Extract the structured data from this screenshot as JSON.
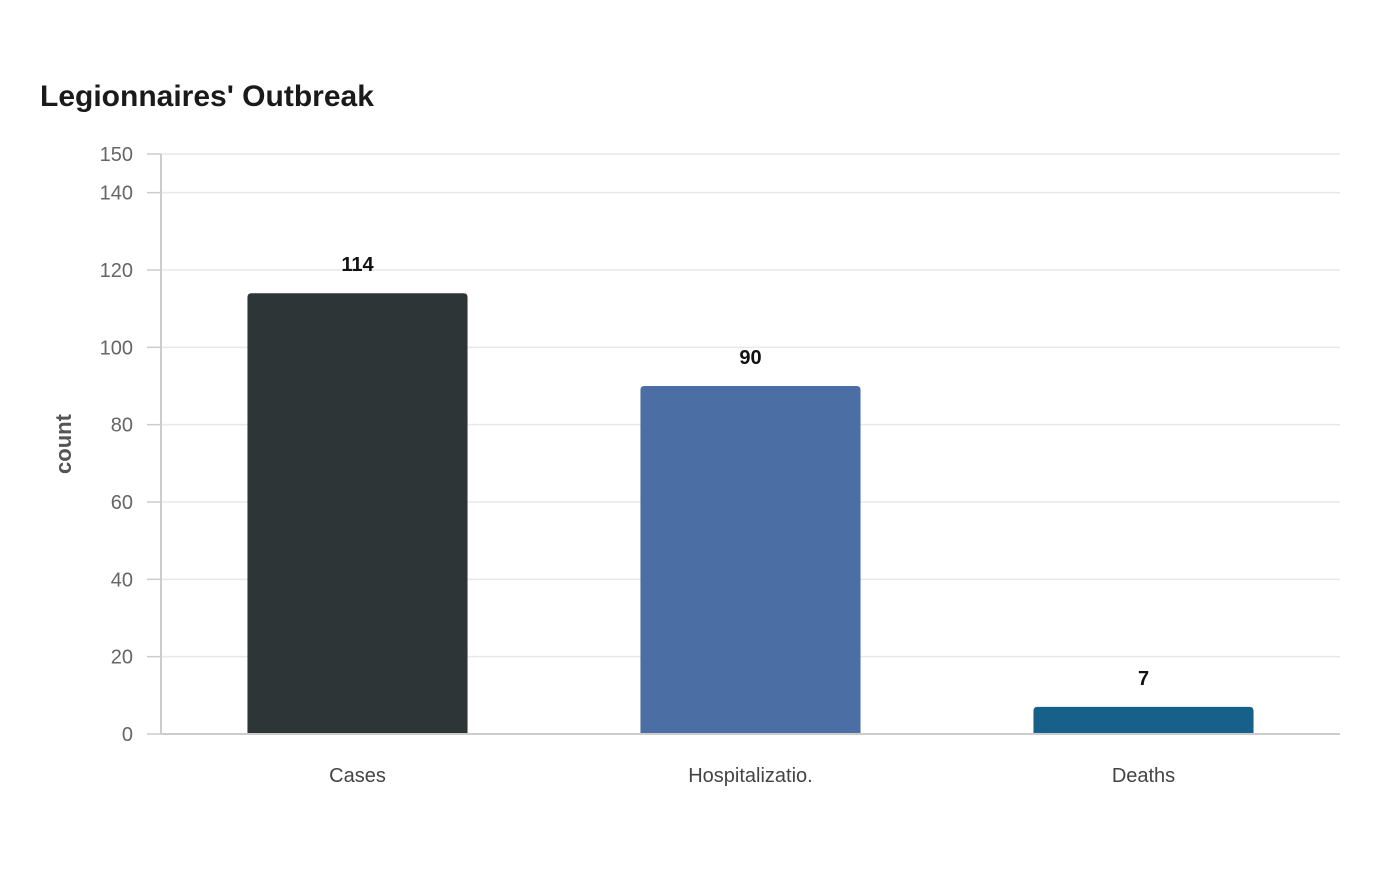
{
  "chart_data": {
    "type": "bar",
    "title": "Legionnaires' Outbreak",
    "ylabel": "count",
    "xlabel": "",
    "categories": [
      "Cases",
      "Hospitalizatio.",
      "Deaths"
    ],
    "values": [
      114,
      90,
      7
    ],
    "colors": [
      "#2e3537",
      "#4b6ea5",
      "#17608a"
    ],
    "ylim": [
      0,
      150
    ],
    "yticks": [
      0,
      20,
      40,
      60,
      80,
      100,
      120,
      140,
      150
    ],
    "grid": true,
    "legend": "none"
  }
}
